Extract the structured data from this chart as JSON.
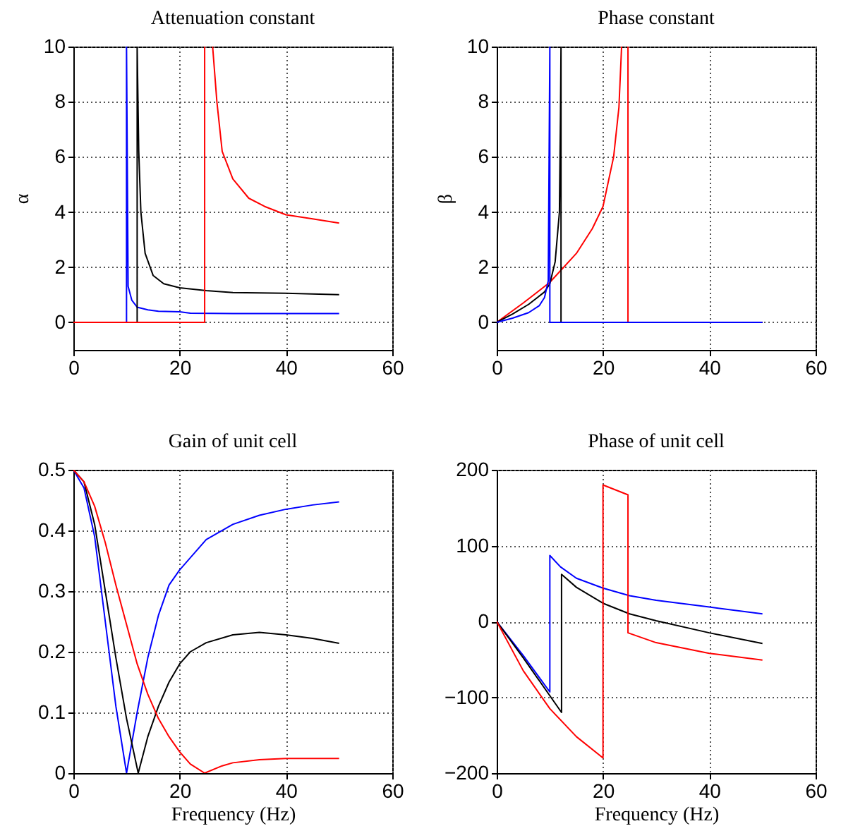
{
  "chart_data": [
    {
      "type": "line",
      "title": "Attenuation constant",
      "ylabel": "α",
      "xlim": [
        0,
        60
      ],
      "xticks": [
        0,
        20,
        40,
        60
      ],
      "ylim": [
        -1,
        10
      ],
      "yticks": [
        0,
        2,
        4,
        6,
        8,
        10
      ],
      "grid": true,
      "series": [
        {
          "color": "#0000ff",
          "x": [
            0,
            10,
            10,
            10.3,
            11,
            12,
            14,
            16,
            20,
            22,
            30,
            40,
            50
          ],
          "values": [
            0,
            0,
            10,
            1.3,
            0.8,
            0.55,
            0.45,
            0.4,
            0.38,
            0.33,
            0.32,
            0.32,
            0.32
          ]
        },
        {
          "color": "#000000",
          "x": [
            0,
            12,
            12,
            12.3,
            12.7,
            13.5,
            15,
            17,
            20,
            25,
            30,
            40,
            50
          ],
          "values": [
            0,
            0,
            10,
            6.2,
            4,
            2.5,
            1.7,
            1.4,
            1.25,
            1.15,
            1.08,
            1.05,
            1.0
          ]
        },
        {
          "color": "#ff0000",
          "x": [
            0,
            24.7,
            24.7,
            25.5,
            26.2,
            27,
            28,
            30,
            33,
            36,
            40,
            45,
            50
          ],
          "values": [
            0,
            0,
            10,
            null,
            10,
            8,
            6.2,
            5.2,
            4.5,
            4.2,
            3.9,
            3.75,
            3.6
          ]
        }
      ]
    },
    {
      "type": "line",
      "title": "Phase constant",
      "ylabel": "β",
      "xlim": [
        0,
        60
      ],
      "xticks": [
        0,
        20,
        40,
        60
      ],
      "ylim": [
        -1,
        10
      ],
      "yticks": [
        0,
        2,
        4,
        6,
        8,
        10
      ],
      "grid": true,
      "series": [
        {
          "color": "#ff0000",
          "x": [
            0,
            5,
            10,
            15,
            18,
            20,
            22,
            23,
            23.5,
            24,
            24.7,
            24.7,
            50
          ],
          "values": [
            0,
            0.7,
            1.45,
            2.5,
            3.4,
            4.2,
            6,
            7.8,
            10,
            null,
            10,
            0,
            0
          ]
        },
        {
          "color": "#000000",
          "x": [
            0,
            3,
            6,
            9,
            10,
            11,
            11.8,
            12,
            12.1,
            12.1,
            50
          ],
          "values": [
            0,
            0.3,
            0.65,
            1.1,
            1.4,
            2.2,
            4,
            7.5,
            10,
            0,
            0
          ]
        },
        {
          "color": "#0000ff",
          "x": [
            0,
            3,
            6,
            8,
            9,
            9.7,
            10,
            10,
            50
          ],
          "values": [
            0,
            0.15,
            0.35,
            0.6,
            0.9,
            1.5,
            10,
            0,
            0
          ]
        }
      ]
    },
    {
      "type": "line",
      "title": "Gain of unit cell",
      "xlabel": "Frequency (Hz)",
      "xlim": [
        0,
        60
      ],
      "xticks": [
        0,
        20,
        40,
        60
      ],
      "ylim": [
        0,
        0.5
      ],
      "yticks": [
        0,
        0.1,
        0.2,
        0.3,
        0.4,
        0.5
      ],
      "grid": true,
      "series": [
        {
          "color": "#0000ff",
          "x": [
            0,
            2,
            4,
            6,
            8,
            10,
            12,
            14,
            16,
            18,
            20,
            25,
            30,
            35,
            40,
            45,
            50
          ],
          "values": [
            0.5,
            0.47,
            0.39,
            0.25,
            0.11,
            0,
            0.1,
            0.19,
            0.26,
            0.31,
            0.335,
            0.385,
            0.41,
            0.425,
            0.435,
            0.442,
            0.447
          ]
        },
        {
          "color": "#000000",
          "x": [
            0,
            2,
            4,
            6,
            8,
            10,
            12.2,
            14,
            16,
            18,
            20,
            22,
            25,
            30,
            35,
            40,
            45,
            50
          ],
          "values": [
            0.5,
            0.48,
            0.41,
            0.3,
            0.19,
            0.09,
            0,
            0.06,
            0.11,
            0.15,
            0.18,
            0.2,
            0.215,
            0.228,
            0.232,
            0.228,
            0.222,
            0.214
          ]
        },
        {
          "color": "#ff0000",
          "x": [
            0,
            2,
            4,
            6,
            8,
            10,
            12,
            14,
            16,
            18,
            20,
            22,
            24.7,
            28,
            30,
            35,
            40,
            50
          ],
          "values": [
            0.5,
            0.48,
            0.44,
            0.38,
            0.31,
            0.245,
            0.18,
            0.13,
            0.09,
            0.06,
            0.035,
            0.015,
            0,
            0.012,
            0.017,
            0.022,
            0.024,
            0.024
          ]
        }
      ]
    },
    {
      "type": "line",
      "title": "Phase of unit cell",
      "xlabel": "Frequency (Hz)",
      "xlim": [
        0,
        60
      ],
      "xticks": [
        0,
        20,
        40,
        60
      ],
      "ylim": [
        -200,
        200
      ],
      "yticks": [
        -200,
        -100,
        0,
        100,
        200
      ],
      "grid": true,
      "series": [
        {
          "color": "#0000ff",
          "x": [
            0,
            5,
            10,
            10,
            12,
            15,
            20,
            25,
            30,
            40,
            50
          ],
          "values": [
            0,
            -45,
            -93,
            87,
            72,
            57,
            44,
            34,
            28,
            19,
            10
          ]
        },
        {
          "color": "#000000",
          "x": [
            0,
            5,
            12.2,
            12.2,
            15,
            20,
            25,
            30,
            40,
            50
          ],
          "values": [
            0,
            -48,
            -120,
            62,
            45,
            24,
            10,
            1,
            -15,
            -29
          ]
        },
        {
          "color": "#ff0000",
          "x": [
            0,
            5,
            10,
            15,
            20,
            20,
            24.7,
            24.7,
            30,
            40,
            50
          ],
          "values": [
            0,
            -65,
            -115,
            -152,
            -180,
            180,
            167,
            -15,
            -28,
            -42,
            -51
          ]
        }
      ]
    }
  ]
}
